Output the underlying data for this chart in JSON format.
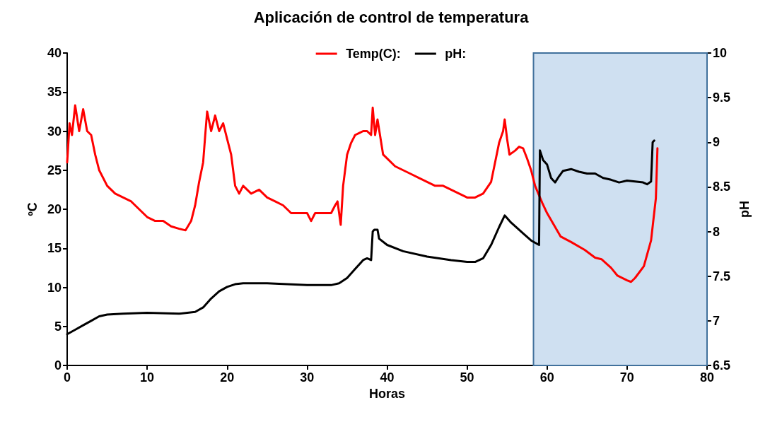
{
  "chart_data": {
    "type": "line",
    "title": "Aplicación de control de temperatura",
    "xlabel": "Horas",
    "ylabel": "ºC",
    "y2label": "pH",
    "xlim": [
      0,
      80
    ],
    "xticks": [
      0,
      10,
      20,
      30,
      40,
      50,
      60,
      70,
      80
    ],
    "ylim": [
      0,
      40
    ],
    "yticks": [
      0,
      5,
      10,
      15,
      20,
      25,
      30,
      35,
      40
    ],
    "y2lim": [
      6.5,
      10
    ],
    "y2ticks": [
      6.5,
      7,
      7.5,
      8,
      8.5,
      9,
      9.5,
      10
    ],
    "grid": false,
    "legend": "top",
    "marker": "none",
    "line_style": "solid",
    "bands": [
      {
        "axis": "x",
        "from": 58.3,
        "to": 80,
        "color": "#cfe0f1"
      }
    ],
    "series": [
      {
        "name": "Temp(C):",
        "color": "#ff0000",
        "x": [
          0,
          0.3,
          0.6,
          1,
          1.5,
          2,
          2.5,
          3,
          3.5,
          4,
          5,
          6,
          7,
          8,
          9,
          10,
          11,
          12,
          13,
          14,
          14.8,
          15.5,
          16,
          16.5,
          17,
          17.3,
          17.5,
          18,
          18.5,
          19,
          19.5,
          20,
          20.5,
          21,
          21.5,
          22,
          23,
          24,
          25,
          26,
          27,
          28,
          29,
          30,
          30.5,
          31,
          32,
          33,
          33.5,
          33.8,
          34.2,
          34.5,
          35,
          35.5,
          36,
          37,
          37.5,
          38,
          38.2,
          38.5,
          38.8,
          39.5,
          40,
          41,
          42,
          43,
          44,
          45,
          46,
          47,
          48,
          49,
          50,
          51,
          52,
          53,
          53.5,
          54,
          54.5,
          54.7,
          55,
          55.3,
          56,
          56.5,
          57,
          57.5,
          58,
          58.5,
          59.4,
          60,
          61.7,
          63,
          64.7,
          66,
          66.8,
          68,
          68.8,
          70,
          70.5,
          71,
          72.1,
          73,
          73.6,
          73.8
        ],
        "values": [
          26,
          31,
          29.5,
          33.3,
          30,
          32.8,
          30,
          29.5,
          27,
          25,
          23,
          22,
          21.5,
          21,
          20,
          19,
          18.5,
          18.5,
          17.8,
          17.5,
          17.3,
          18.5,
          20.5,
          23.5,
          26,
          30,
          32.5,
          30,
          32,
          30,
          31,
          29,
          27,
          23,
          22,
          23,
          22,
          22.5,
          21.5,
          21,
          20.5,
          19.5,
          19.5,
          19.5,
          18.5,
          19.5,
          19.5,
          19.5,
          20.5,
          21,
          18,
          23,
          27,
          28.5,
          29.5,
          30,
          30,
          29.5,
          33,
          29.5,
          31.5,
          27,
          26.5,
          25.5,
          25,
          24.5,
          24,
          23.5,
          23,
          23,
          22.5,
          22,
          21.5,
          21.5,
          22,
          23.5,
          26,
          28.5,
          30,
          31.5,
          29,
          27,
          27.5,
          28,
          27.8,
          26.5,
          25,
          23,
          20.8,
          19.5,
          16.5,
          15.8,
          14.8,
          13.8,
          13.6,
          12.5,
          11.5,
          10.9,
          10.7,
          11.2,
          12.7,
          16,
          21.4,
          27.8
        ]
      },
      {
        "name": "pH:",
        "color": "#000000",
        "axis": "y2",
        "x": [
          0,
          1,
          2,
          3,
          4,
          5,
          7,
          10,
          14,
          16,
          17,
          18,
          19,
          20,
          21,
          22,
          25,
          30,
          33,
          34,
          35,
          36,
          37,
          37.5,
          38,
          38.2,
          38.4,
          38.8,
          39,
          40,
          42,
          45,
          48,
          50,
          51,
          52,
          53,
          54,
          54.7,
          55.5,
          57,
          58,
          59,
          59.1,
          59.5,
          60,
          60.5,
          61,
          61.5,
          62,
          63,
          64,
          65,
          66,
          67,
          68,
          69,
          70,
          71,
          72,
          72.5,
          73,
          73.2,
          73.4
        ],
        "values": [
          6.85,
          6.9,
          6.95,
          7,
          7.05,
          7.07,
          7.08,
          7.09,
          7.08,
          7.1,
          7.15,
          7.25,
          7.33,
          7.38,
          7.41,
          7.42,
          7.42,
          7.4,
          7.4,
          7.42,
          7.48,
          7.58,
          7.68,
          7.7,
          7.68,
          8,
          8.02,
          8.02,
          7.92,
          7.85,
          7.78,
          7.72,
          7.68,
          7.66,
          7.66,
          7.7,
          7.85,
          8.05,
          8.18,
          8.1,
          7.98,
          7.9,
          7.85,
          8.91,
          8.8,
          8.75,
          8.6,
          8.55,
          8.62,
          8.68,
          8.7,
          8.67,
          8.65,
          8.65,
          8.6,
          8.58,
          8.55,
          8.57,
          8.56,
          8.55,
          8.53,
          8.56,
          9,
          9.02
        ]
      }
    ]
  }
}
